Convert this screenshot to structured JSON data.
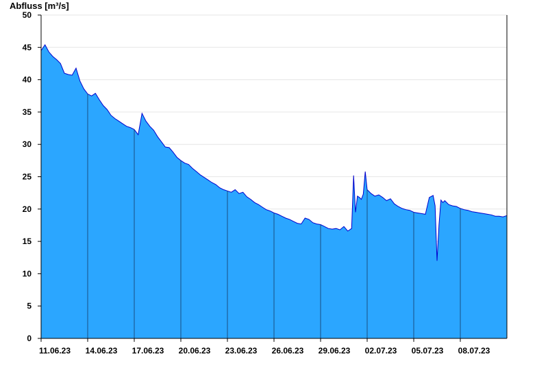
{
  "chart_data": {
    "type": "area",
    "title": "",
    "ylabel": "Abfluss [m³/s]",
    "xlabel": "",
    "ylim": [
      0,
      50
    ],
    "yticks": [
      0,
      5,
      10,
      15,
      20,
      25,
      30,
      35,
      40,
      45,
      50
    ],
    "xrange": [
      "2023-06-11",
      "2023-07-11"
    ],
    "xtick_labels": [
      "11.06.23",
      "14.06.23",
      "17.06.23",
      "20.06.23",
      "23.06.23",
      "26.06.23",
      "29.06.23",
      "02.07.23",
      "05.07.23",
      "08.07.23"
    ],
    "xtick_dates": [
      "2023-06-11",
      "2023-06-14",
      "2023-06-17",
      "2023-06-20",
      "2023-06-23",
      "2023-06-26",
      "2023-06-29",
      "2023-07-02",
      "2023-07-05",
      "2023-07-08"
    ],
    "grid": true,
    "colors": {
      "fill": "#2ba6ff",
      "line": "#0000cc",
      "grid": "#e6e6e6",
      "vline": "#1a4f80"
    },
    "series": [
      {
        "x": [
          "2023-06-11 00:00",
          "2023-06-11 06:00",
          "2023-06-11 12:00",
          "2023-06-11 18:00",
          "2023-06-12 00:00",
          "2023-06-12 06:00",
          "2023-06-12 12:00",
          "2023-06-12 18:00",
          "2023-06-13 00:00",
          "2023-06-13 06:00",
          "2023-06-13 12:00",
          "2023-06-13 18:00",
          "2023-06-14 00:00",
          "2023-06-14 06:00",
          "2023-06-14 12:00",
          "2023-06-14 18:00",
          "2023-06-15 00:00",
          "2023-06-15 06:00",
          "2023-06-15 12:00",
          "2023-06-15 18:00",
          "2023-06-16 00:00",
          "2023-06-16 06:00",
          "2023-06-16 12:00",
          "2023-06-16 18:00",
          "2023-06-17 00:00",
          "2023-06-17 06:00",
          "2023-06-17 12:00",
          "2023-06-17 18:00",
          "2023-06-18 00:00",
          "2023-06-18 06:00",
          "2023-06-18 12:00",
          "2023-06-18 18:00",
          "2023-06-19 00:00",
          "2023-06-19 06:00",
          "2023-06-19 12:00",
          "2023-06-19 18:00",
          "2023-06-20 00:00",
          "2023-06-20 06:00",
          "2023-06-20 12:00",
          "2023-06-20 18:00",
          "2023-06-21 00:00",
          "2023-06-21 06:00",
          "2023-06-21 12:00",
          "2023-06-21 18:00",
          "2023-06-22 00:00",
          "2023-06-22 06:00",
          "2023-06-22 12:00",
          "2023-06-22 18:00",
          "2023-06-23 00:00",
          "2023-06-23 06:00",
          "2023-06-23 12:00",
          "2023-06-23 18:00",
          "2023-06-24 00:00",
          "2023-06-24 06:00",
          "2023-06-24 12:00",
          "2023-06-24 18:00",
          "2023-06-25 00:00",
          "2023-06-25 06:00",
          "2023-06-25 12:00",
          "2023-06-25 18:00",
          "2023-06-26 00:00",
          "2023-06-26 06:00",
          "2023-06-26 12:00",
          "2023-06-26 18:00",
          "2023-06-27 00:00",
          "2023-06-27 06:00",
          "2023-06-27 12:00",
          "2023-06-27 18:00",
          "2023-06-28 00:00",
          "2023-06-28 06:00",
          "2023-06-28 12:00",
          "2023-06-28 18:00",
          "2023-06-29 00:00",
          "2023-06-29 06:00",
          "2023-06-29 12:00",
          "2023-06-29 18:00",
          "2023-06-30 00:00",
          "2023-06-30 06:00",
          "2023-06-30 12:00",
          "2023-06-30 18:00",
          "2023-07-01 00:00",
          "2023-07-01 03:00",
          "2023-07-01 06:00",
          "2023-07-01 09:00",
          "2023-07-01 12:00",
          "2023-07-01 15:00",
          "2023-07-01 18:00",
          "2023-07-01 21:00",
          "2023-07-02 00:00",
          "2023-07-02 06:00",
          "2023-07-02 12:00",
          "2023-07-02 18:00",
          "2023-07-03 00:00",
          "2023-07-03 06:00",
          "2023-07-03 12:00",
          "2023-07-03 18:00",
          "2023-07-04 00:00",
          "2023-07-04 06:00",
          "2023-07-04 12:00",
          "2023-07-04 18:00",
          "2023-07-05 00:00",
          "2023-07-05 06:00",
          "2023-07-05 12:00",
          "2023-07-05 18:00",
          "2023-07-06 00:00",
          "2023-07-06 06:00",
          "2023-07-06 09:00",
          "2023-07-06 12:00",
          "2023-07-06 15:00",
          "2023-07-06 18:00",
          "2023-07-06 21:00",
          "2023-07-07 00:00",
          "2023-07-07 06:00",
          "2023-07-07 12:00",
          "2023-07-07 18:00",
          "2023-07-08 00:00",
          "2023-07-08 06:00",
          "2023-07-08 12:00",
          "2023-07-08 18:00",
          "2023-07-09 00:00",
          "2023-07-09 06:00",
          "2023-07-09 12:00",
          "2023-07-09 18:00",
          "2023-07-10 00:00",
          "2023-07-10 06:00",
          "2023-07-10 12:00",
          "2023-07-10 18:00",
          "2023-07-11 00:00"
        ],
        "y": [
          44.5,
          45.4,
          44.3,
          43.6,
          43.1,
          42.5,
          41.0,
          40.8,
          40.7,
          41.8,
          39.8,
          38.6,
          37.8,
          37.5,
          37.9,
          36.9,
          36.0,
          35.4,
          34.5,
          34.0,
          33.6,
          33.2,
          32.8,
          32.6,
          32.3,
          31.5,
          34.8,
          33.6,
          32.8,
          32.2,
          31.2,
          30.4,
          29.6,
          29.5,
          28.8,
          28.0,
          27.5,
          27.1,
          26.9,
          26.3,
          25.8,
          25.3,
          24.9,
          24.5,
          24.1,
          23.8,
          23.3,
          23.0,
          22.8,
          22.6,
          23.0,
          22.4,
          22.6,
          21.9,
          21.5,
          21.0,
          20.7,
          20.3,
          19.9,
          19.7,
          19.4,
          19.2,
          18.9,
          18.6,
          18.4,
          18.1,
          17.8,
          17.7,
          18.6,
          18.4,
          17.9,
          17.7,
          17.6,
          17.3,
          17.0,
          16.9,
          17.0,
          16.8,
          17.3,
          16.6,
          17.0,
          25.2,
          19.5,
          22.0,
          21.8,
          21.5,
          22.3,
          25.8,
          23.0,
          22.4,
          22.0,
          22.2,
          21.8,
          21.3,
          21.6,
          20.8,
          20.4,
          20.1,
          19.9,
          19.8,
          19.5,
          19.4,
          19.3,
          19.2,
          21.8,
          22.1,
          20.5,
          12.0,
          17.5,
          21.4,
          21.0,
          21.3,
          20.7,
          20.5,
          20.4,
          20.1,
          19.9,
          19.8,
          19.6,
          19.5,
          19.4,
          19.3,
          19.2,
          19.1,
          18.9,
          18.9,
          18.8,
          19.0
        ]
      }
    ]
  }
}
